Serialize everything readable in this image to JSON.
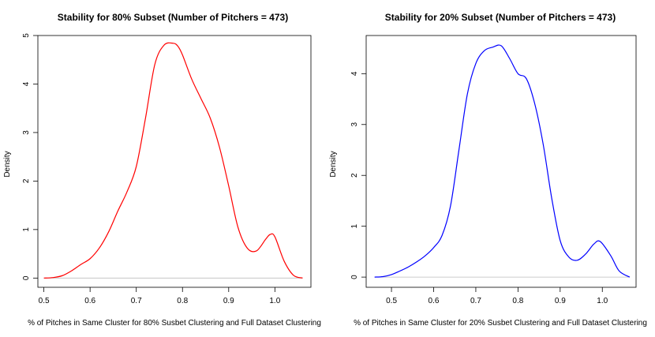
{
  "chart_data": [
    {
      "type": "line",
      "title": "Stability for 80% Subset (Number of Pitchers = 473)",
      "xlabel": "% of Pitches in Same Cluster for 80% Susbet Clustering and Full Dataset Clustering",
      "ylabel": "Density",
      "xlim": [
        0.487,
        1.078
      ],
      "ylim": [
        -0.19,
        5.0
      ],
      "xticks": [
        "0.5",
        "0.6",
        "0.7",
        "0.8",
        "0.9",
        "1.0"
      ],
      "yticks": [
        "0",
        "1",
        "2",
        "3",
        "4",
        "5"
      ],
      "color": "#ff0000",
      "grid": false,
      "series": [
        {
          "x": [
            0.5,
            0.52,
            0.54,
            0.56,
            0.58,
            0.6,
            0.62,
            0.64,
            0.66,
            0.68,
            0.7,
            0.72,
            0.74,
            0.76,
            0.78,
            0.79,
            0.8,
            0.82,
            0.84,
            0.86,
            0.88,
            0.9,
            0.92,
            0.94,
            0.96,
            0.98,
            0.99,
            1.0,
            1.02,
            1.04,
            1.06
          ],
          "y": [
            0.0,
            0.01,
            0.05,
            0.15,
            0.28,
            0.4,
            0.62,
            0.95,
            1.38,
            1.78,
            2.3,
            3.3,
            4.4,
            4.8,
            4.84,
            4.78,
            4.6,
            4.1,
            3.7,
            3.3,
            2.7,
            1.9,
            1.05,
            0.62,
            0.56,
            0.8,
            0.9,
            0.85,
            0.35,
            0.06,
            0.0
          ]
        }
      ]
    },
    {
      "type": "line",
      "title": "Stability for 20% Subset (Number of Pitchers = 473)",
      "xlabel": "% of Pitches in Same Cluster for 20% Susbet Clustering and Full Dataset Clustering",
      "ylabel": "Density",
      "xlim": [
        0.44,
        1.08
      ],
      "ylim": [
        -0.2,
        4.75
      ],
      "xticks": [
        "0.5",
        "0.6",
        "0.7",
        "0.8",
        "0.9",
        "1.0"
      ],
      "yticks": [
        "0",
        "1",
        "2",
        "3",
        "4"
      ],
      "color": "#0000ff",
      "grid": false,
      "series": [
        {
          "x": [
            0.46,
            0.48,
            0.5,
            0.52,
            0.54,
            0.56,
            0.58,
            0.6,
            0.62,
            0.64,
            0.66,
            0.68,
            0.7,
            0.72,
            0.74,
            0.76,
            0.78,
            0.8,
            0.82,
            0.84,
            0.86,
            0.88,
            0.9,
            0.92,
            0.94,
            0.96,
            0.98,
            0.995,
            1.02,
            1.04,
            1.065
          ],
          "y": [
            0.0,
            0.01,
            0.05,
            0.12,
            0.2,
            0.3,
            0.42,
            0.58,
            0.82,
            1.4,
            2.5,
            3.6,
            4.2,
            4.45,
            4.52,
            4.55,
            4.3,
            4.0,
            3.9,
            3.4,
            2.6,
            1.55,
            0.72,
            0.4,
            0.33,
            0.45,
            0.65,
            0.7,
            0.42,
            0.12,
            0.0
          ]
        }
      ]
    }
  ]
}
